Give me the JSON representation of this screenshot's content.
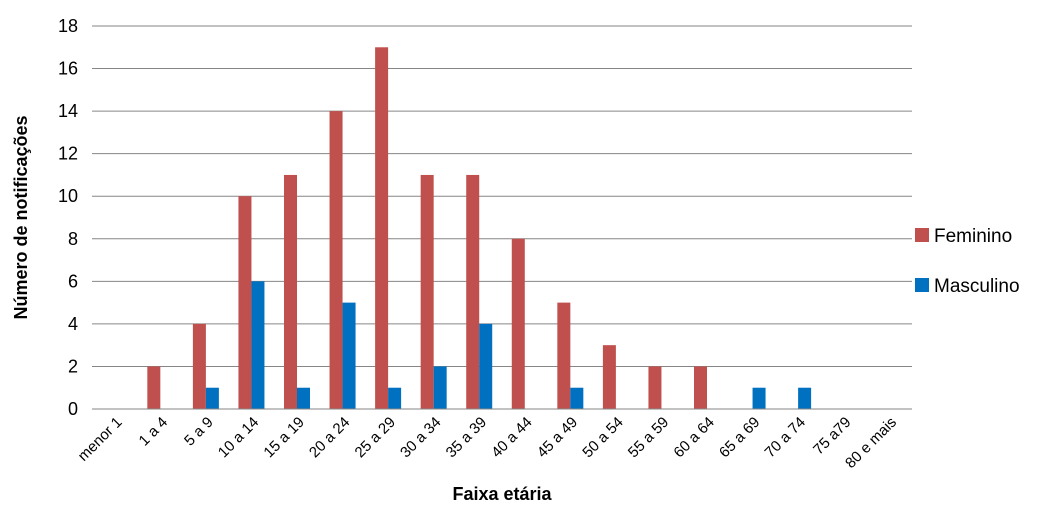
{
  "chart_data": {
    "type": "bar",
    "title": "",
    "xlabel": "Faixa etária",
    "ylabel": "Número de notificações",
    "ylim": [
      0,
      18
    ],
    "yticks": [
      0,
      2,
      4,
      6,
      8,
      10,
      12,
      14,
      16,
      18
    ],
    "grid": true,
    "legend_position": "right",
    "categories": [
      "menor 1",
      "1 a 4",
      "5 a 9",
      "10 a 14",
      "15 a 19",
      "20 a 24",
      "25 a 29",
      "30 a 34",
      "35 a 39",
      "40 a 44",
      "45 a 49",
      "50 a 54",
      "55 a 59",
      "60 a 64",
      "65 a 69",
      "70 a 74",
      "75 a79",
      "80 e mais"
    ],
    "series": [
      {
        "name": "Feminino",
        "color": "#C0504D",
        "values": [
          0,
          2,
          4,
          10,
          11,
          14,
          17,
          11,
          11,
          8,
          5,
          3,
          2,
          2,
          0,
          0,
          0,
          0
        ]
      },
      {
        "name": "Masculino",
        "color": "#0070C0",
        "values": [
          0,
          0,
          1,
          6,
          1,
          5,
          1,
          2,
          4,
          0,
          1,
          0,
          0,
          0,
          1,
          1,
          0,
          0
        ]
      }
    ]
  }
}
